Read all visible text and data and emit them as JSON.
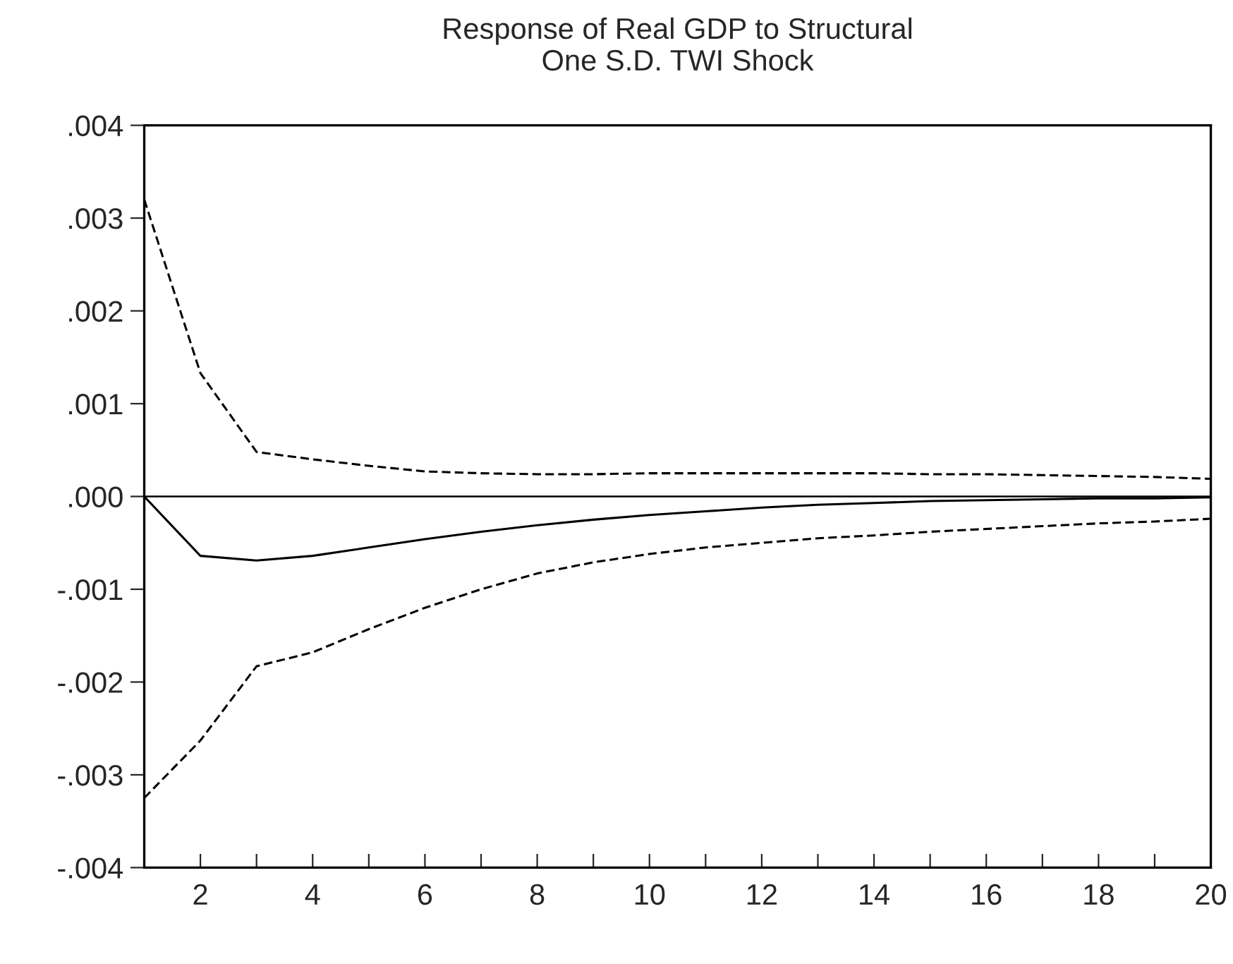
{
  "chart_data": {
    "type": "line",
    "title": "Response of Real GDP to Structural\nOne S.D. TWI Shock",
    "x": [
      1,
      2,
      3,
      4,
      5,
      6,
      7,
      8,
      9,
      10,
      11,
      12,
      13,
      14,
      15,
      16,
      17,
      18,
      19,
      20
    ],
    "series": [
      {
        "color": "#000000",
        "line_style": "solid",
        "values": [
          0,
          -0.00064,
          -0.00069,
          -0.00064,
          -0.00055,
          -0.00046,
          -0.00038,
          -0.00031,
          -0.00025,
          -0.0002,
          -0.00016,
          -0.00012,
          -9e-05,
          -7e-05,
          -5e-05,
          -4e-05,
          -3e-05,
          -2e-05,
          -2e-05,
          -1e-05
        ]
      },
      {
        "color": "#000000",
        "line_style": "dashed",
        "values": [
          0.0032,
          0.00133,
          0.00048,
          0.0004,
          0.00033,
          0.00027,
          0.00025,
          0.00024,
          0.00024,
          0.00025,
          0.00025,
          0.00025,
          0.00025,
          0.00025,
          0.00024,
          0.00024,
          0.00023,
          0.00022,
          0.00021,
          0.00019
        ]
      },
      {
        "color": "#000000",
        "line_style": "dashed",
        "values": [
          -0.00325,
          -0.00263,
          -0.00183,
          -0.00168,
          -0.00143,
          -0.0012,
          -0.001,
          -0.00083,
          -0.00071,
          -0.00062,
          -0.00055,
          -0.0005,
          -0.00045,
          -0.00042,
          -0.00038,
          -0.00035,
          -0.00032,
          -0.00029,
          -0.00027,
          -0.00024
        ]
      }
    ],
    "xlim": [
      1,
      20
    ],
    "xticks": [
      {
        "value": 1,
        "label": null
      },
      2,
      {
        "value": 3,
        "label": null
      },
      4,
      {
        "value": 5,
        "label": null
      },
      6,
      {
        "value": 7,
        "label": null
      },
      8,
      {
        "value": 9,
        "label": null
      },
      10,
      {
        "value": 11,
        "label": null
      },
      12,
      {
        "value": 13,
        "label": null
      },
      14,
      {
        "value": 15,
        "label": null
      },
      16,
      {
        "value": 17,
        "label": null
      },
      18,
      {
        "value": 19,
        "label": null
      },
      20
    ],
    "ylim": [
      -0.004,
      0.004
    ],
    "yticks": [
      {
        "value": -0.004,
        "label": "-.004"
      },
      {
        "value": -0.003,
        "label": "-.003"
      },
      {
        "value": -0.002,
        "label": "-.002"
      },
      {
        "value": -0.001,
        "label": "-.001"
      },
      {
        "value": 0,
        "label": ".000"
      },
      {
        "value": 0.001,
        "label": ".001"
      },
      {
        "value": 0.002,
        "label": ".002"
      },
      {
        "value": 0.003,
        "label": ".003"
      },
      {
        "value": 0.004,
        "label": ".004"
      }
    ],
    "ref_lines": [
      {
        "axis": "y",
        "value": 0,
        "color": "#000000",
        "line_style": "solid"
      }
    ],
    "grid": false,
    "legend": false
  }
}
